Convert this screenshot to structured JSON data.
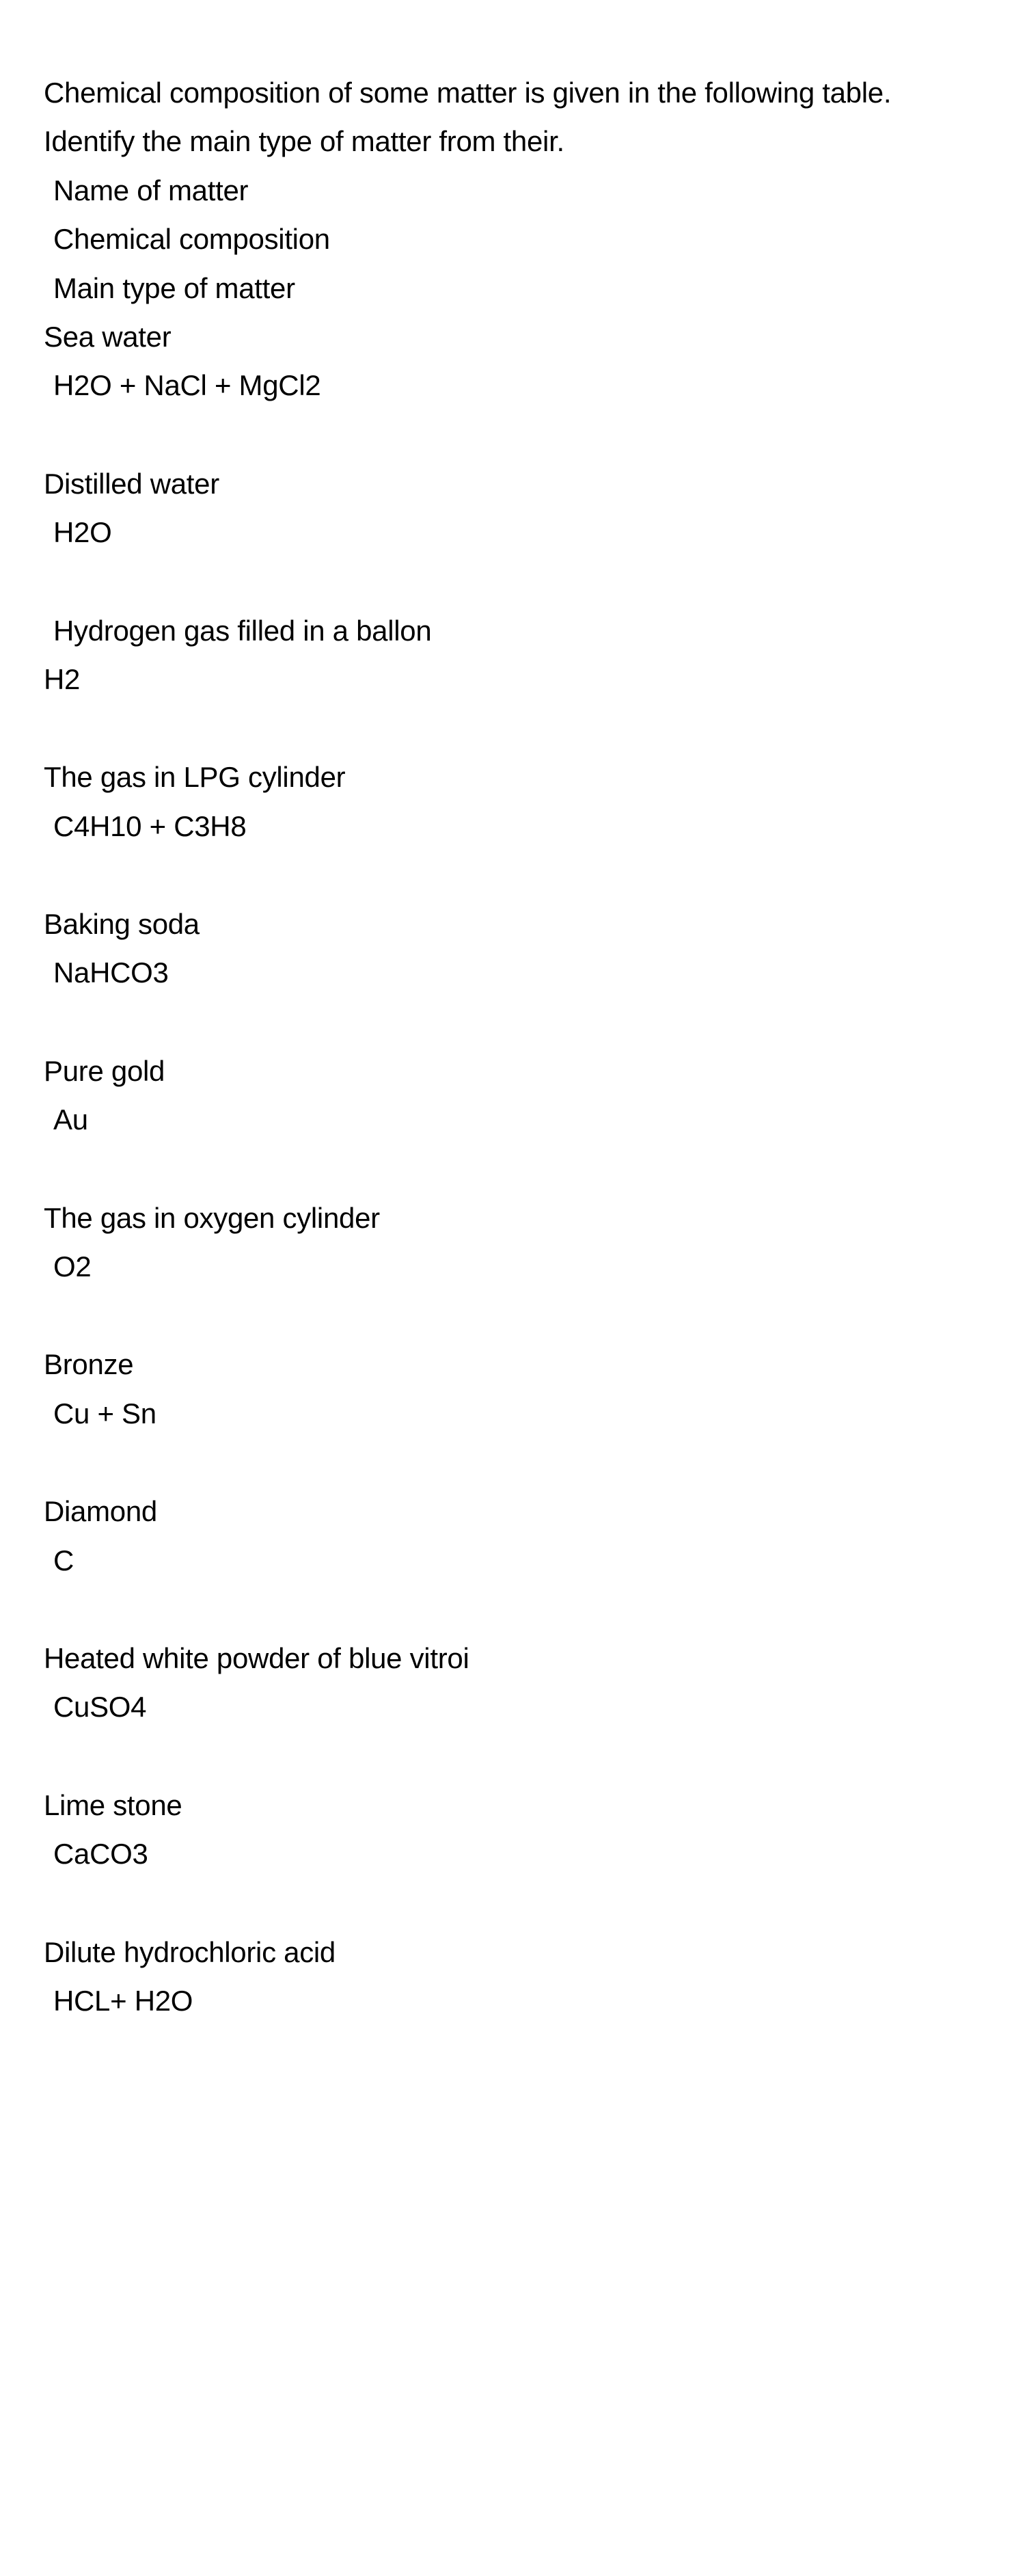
{
  "text_color": "#000000",
  "background_color": "#ffffff",
  "font_size_pt": 31,
  "intro": "Chemical composition of some matter is given in the following table. Identify the main type of matter from their.",
  "headers": {
    "name": "Name of matter",
    "composition": "Chemical composition",
    "type": "Main type of matter"
  },
  "entries": [
    {
      "name": "Sea water",
      "composition": "H2O + NaCl + MgCl2"
    },
    {
      "name": "Distilled water",
      "composition": "H2O"
    },
    {
      "name": "Hydrogen gas filled  in a ballon",
      "composition": "H2",
      "name_indent": true,
      "comp_indent": false
    },
    {
      "name": "The gas in LPG cylinder",
      "composition": "C4H10 + C3H8"
    },
    {
      "name": "Baking soda",
      "composition": "NaHCO3"
    },
    {
      "name": "Pure gold",
      "composition": "Au"
    },
    {
      "name": "The gas in oxygen cylinder",
      "composition": "O2"
    },
    {
      "name": "Bronze",
      "composition": "Cu + Sn"
    },
    {
      "name": "Diamond",
      "composition": "C"
    },
    {
      "name": "Heated white powder of blue vitroi",
      "composition": "CuSO4"
    },
    {
      "name": "Lime stone",
      "composition": "CaCO3"
    },
    {
      "name": "Dilute hydrochloric acid",
      "composition": "HCL+ H2O"
    }
  ]
}
